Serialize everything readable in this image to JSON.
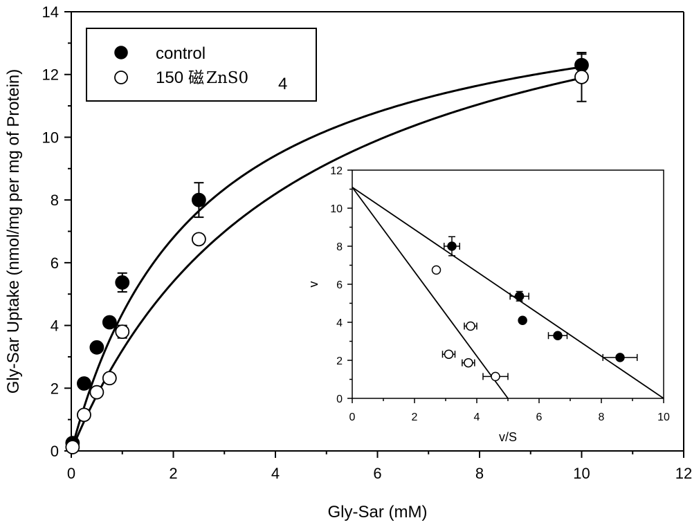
{
  "chart_data": [
    {
      "type": "scatter",
      "panel": "main",
      "xlabel": "Gly-Sar (mM)",
      "ylabel": "Gly-Sar Uptake (nmol/mg per mg of Protein)",
      "xlim": [
        0,
        12
      ],
      "ylim": [
        0,
        14
      ],
      "xticks": [
        "0",
        "2",
        "4",
        "6",
        "8",
        "10",
        "12"
      ],
      "yticks": [
        "0",
        "2",
        "4",
        "6",
        "8",
        "10",
        "12",
        "14"
      ],
      "grid": false,
      "legend_position": "top-left",
      "series": [
        {
          "name": "control",
          "marker": "filled-circle",
          "x": [
            0.025,
            0.25,
            0.5,
            0.75,
            1.0,
            2.5,
            10.0
          ],
          "y": [
            0.25,
            2.15,
            3.3,
            4.1,
            5.37,
            8.0,
            12.3
          ],
          "y_err": [
            0.1,
            0.12,
            0.15,
            0.1,
            0.3,
            0.55,
            0.35
          ],
          "fit": {
            "model": "Michaelis-Menten",
            "vmax": 15.3,
            "km": 2.5
          }
        },
        {
          "name": "150 磁 ZnS0 4",
          "marker": "open-circle",
          "x": [
            0.025,
            0.25,
            0.5,
            0.75,
            1.0,
            2.5,
            10.0
          ],
          "y": [
            0.12,
            1.15,
            1.87,
            2.32,
            3.8,
            6.75,
            11.92
          ],
          "y_err": [
            0.08,
            0.1,
            0.12,
            0.15,
            0.2,
            0.15,
            0.78
          ],
          "fit": {
            "model": "Michaelis-Menten",
            "vmax": 17.0,
            "km": 4.3
          }
        }
      ]
    },
    {
      "type": "scatter",
      "panel": "inset",
      "xlabel": "v/S",
      "ylabel": "v",
      "xlim": [
        0,
        10
      ],
      "ylim": [
        0,
        12
      ],
      "xticks": [
        "0",
        "2",
        "4",
        "6",
        "8",
        "10"
      ],
      "yticks": [
        "0",
        "2",
        "4",
        "6",
        "8",
        "10",
        "12"
      ],
      "grid": false,
      "series": [
        {
          "name": "control",
          "marker": "filled-circle",
          "x": [
            3.2,
            5.37,
            5.47,
            6.6,
            8.6
          ],
          "y": [
            8.0,
            5.37,
            4.1,
            3.3,
            2.15
          ],
          "x_err": [
            0.25,
            0.3,
            0.0,
            0.3,
            0.55
          ],
          "y_err": [
            0.5,
            0.25,
            0.0,
            0.0,
            0.0
          ],
          "fit": {
            "model": "linear",
            "points": [
              [
                0,
                11.1
              ],
              [
                10,
                0
              ]
            ]
          }
        },
        {
          "name": "150 磁 ZnS0 4",
          "marker": "open-circle",
          "x": [
            2.7,
            3.8,
            3.1,
            3.73,
            4.6
          ],
          "y": [
            6.75,
            3.8,
            2.32,
            1.87,
            1.15
          ],
          "x_err": [
            0.0,
            0.2,
            0.2,
            0.2,
            0.4
          ],
          "y_err": [
            0.0,
            0.0,
            0.0,
            0.0,
            0.0
          ],
          "fit": {
            "model": "linear",
            "points": [
              [
                0,
                11.1
              ],
              [
                5.0,
                0
              ]
            ]
          }
        }
      ]
    }
  ],
  "legend": {
    "entries": [
      {
        "label": "control",
        "marker": "filled-circle"
      },
      {
        "label_main": "150",
        "label_glyph": "磁",
        "label_formula": "ZnS0",
        "label_sub": "4",
        "marker": "open-circle"
      }
    ]
  }
}
